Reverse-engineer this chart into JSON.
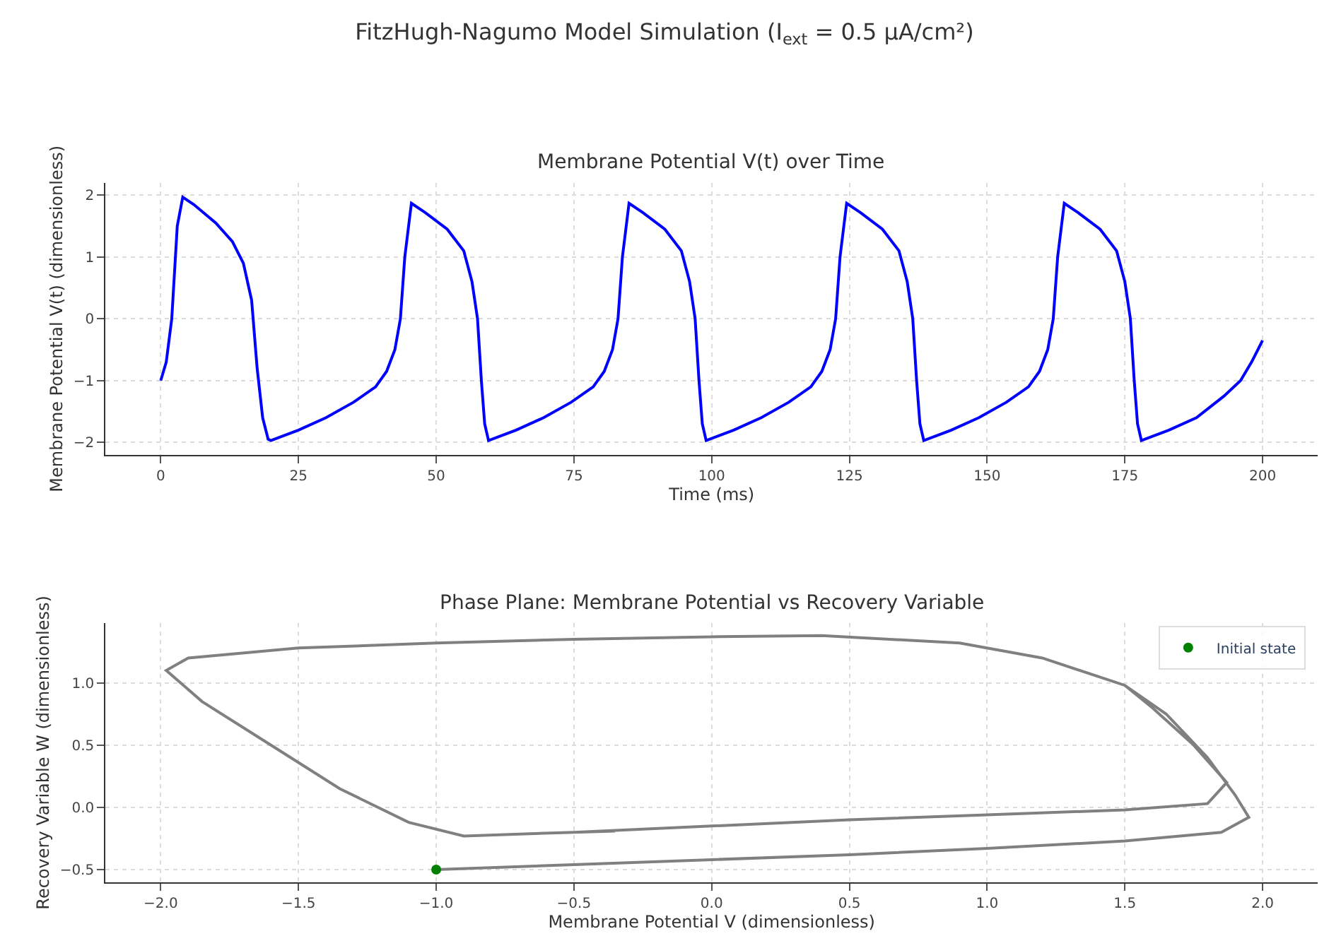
{
  "chart_data": [
    {
      "type": "line",
      "title": "FitzHugh-Nagumo Model Simulation (I$_{ext}$ = 0.5 µA/cm²)",
      "subtitle": "Membrane Potential V(t) over Time",
      "xlabel": "Time (ms)",
      "ylabel": "Membrane Potential V(t) (dimensionless)",
      "xlim": [
        -10,
        210
      ],
      "xticks": [
        0,
        25,
        50,
        75,
        100,
        125,
        150,
        175,
        200
      ],
      "ylim": [
        -2.2,
        2.2
      ],
      "yticks": [
        {
          "value": -2,
          "label": "−2"
        },
        {
          "value": -1,
          "label": "−1"
        },
        0,
        1,
        2
      ],
      "grid": true,
      "legend": false,
      "marker": "none",
      "line_style": "solid",
      "x": [
        0,
        1,
        2,
        3,
        4,
        6,
        10,
        13,
        15,
        16.5,
        17.5,
        18.5,
        19.5,
        20,
        25,
        30,
        35,
        39,
        41,
        42.5,
        43.5,
        44.3,
        45.5,
        48,
        52,
        55,
        56.5,
        57.5,
        58.2,
        58.8,
        59.5,
        64.5,
        69.5,
        74.5,
        78.5,
        80.5,
        82,
        83,
        83.8,
        85,
        87.5,
        91.5,
        94.5,
        96,
        97,
        97.7,
        98.3,
        99,
        104,
        109,
        114,
        118,
        120,
        121.5,
        122.5,
        123.3,
        124.5,
        127,
        131,
        134,
        135.5,
        136.5,
        137.2,
        137.8,
        138.5,
        143.5,
        148.5,
        153.5,
        157.5,
        159.5,
        161,
        162,
        162.8,
        164,
        166.5,
        170.5,
        173.5,
        175,
        176,
        176.7,
        177.3,
        178,
        183,
        188,
        193,
        196,
        198,
        200
      ],
      "series": [
        {
          "color": "#0000ff",
          "values": [
            -1,
            -0.7,
            0,
            1.5,
            1.97,
            1.85,
            1.55,
            1.25,
            0.9,
            0.3,
            -0.8,
            -1.6,
            -1.95,
            -1.97,
            -1.8,
            -1.6,
            -1.35,
            -1.1,
            -0.85,
            -0.5,
            0,
            1.0,
            1.87,
            1.72,
            1.45,
            1.1,
            0.6,
            0,
            -1,
            -1.7,
            -1.97,
            -1.8,
            -1.6,
            -1.35,
            -1.1,
            -0.85,
            -0.5,
            0,
            1.0,
            1.87,
            1.72,
            1.45,
            1.1,
            0.6,
            0,
            -1,
            -1.7,
            -1.97,
            -1.8,
            -1.6,
            -1.35,
            -1.1,
            -0.85,
            -0.5,
            0,
            1.0,
            1.87,
            1.72,
            1.45,
            1.1,
            0.6,
            0,
            -1,
            -1.7,
            -1.97,
            -1.8,
            -1.6,
            -1.35,
            -1.1,
            -0.85,
            -0.5,
            0,
            1.0,
            1.87,
            1.72,
            1.45,
            1.1,
            0.6,
            0,
            -1,
            -1.7,
            -1.97,
            -1.8,
            -1.6,
            -1.25,
            -1.0,
            -0.7,
            -0.35
          ]
        }
      ]
    },
    {
      "type": "line",
      "subtitle": "Phase Plane: Membrane Potential vs Recovery Variable",
      "xlabel": "Membrane Potential V (dimensionless)",
      "ylabel": "Recovery Variable W (dimensionless)",
      "xlim": [
        -2.2,
        2.2
      ],
      "xticks": [
        {
          "value": -2,
          "label": "−2.0"
        },
        {
          "value": -1.5,
          "label": "−1.5"
        },
        {
          "value": -1,
          "label": "−1.0"
        },
        {
          "value": -0.5,
          "label": "−0.5"
        },
        {
          "value": 0,
          "label": "0.0"
        },
        0.5,
        {
          "value": 1,
          "label": "1.0"
        },
        1.5,
        {
          "value": 2,
          "label": "2.0"
        }
      ],
      "ylim": [
        -0.6,
        1.48
      ],
      "yticks": [
        {
          "value": -0.5,
          "label": "−0.5"
        },
        {
          "value": 0,
          "label": "0.0"
        },
        0.5,
        {
          "value": 1,
          "label": "1.0"
        }
      ],
      "grid": true,
      "legend": "top right",
      "line_style": "solid",
      "series": [
        {
          "color": "#808080",
          "marker": "none",
          "x": [
            -1,
            -0.5,
            0,
            0.5,
            1,
            1.5,
            1.85,
            1.95,
            1.9,
            1.8,
            1.65,
            1.5,
            1.2,
            0.9,
            0.4,
            0,
            -0.5,
            -1,
            -1.5,
            -1.9,
            -1.98,
            -1.85,
            -1.6,
            -1.35,
            -1.1,
            -0.9,
            -0.5,
            0,
            0.5,
            1,
            1.5,
            1.8,
            1.87,
            1.85,
            1.75,
            1.6,
            1.5,
            1.2,
            0.9,
            0.4,
            0,
            -0.5,
            -1,
            -1.5,
            -1.9,
            -1.98,
            -1.85,
            -1.6,
            -1.35,
            -1.1,
            -0.9,
            -0.5,
            -0.35
          ],
          "values": [
            -0.5,
            -0.46,
            -0.42,
            -0.38,
            -0.33,
            -0.27,
            -0.2,
            -0.08,
            0.1,
            0.4,
            0.75,
            0.98,
            1.2,
            1.32,
            1.38,
            1.37,
            1.35,
            1.32,
            1.28,
            1.2,
            1.1,
            0.85,
            0.5,
            0.15,
            -0.12,
            -0.23,
            -0.2,
            -0.15,
            -0.1,
            -0.06,
            -0.02,
            0.03,
            0.2,
            0.25,
            0.5,
            0.8,
            0.98,
            1.2,
            1.32,
            1.38,
            1.37,
            1.35,
            1.32,
            1.28,
            1.2,
            1.1,
            0.85,
            0.5,
            0.15,
            -0.12,
            -0.23,
            -0.2,
            -0.19
          ]
        },
        {
          "type": "scatter",
          "name": "Initial state",
          "color": "#008000",
          "marker": "circle",
          "x": [
            -1
          ],
          "values": [
            -0.5
          ]
        }
      ]
    }
  ]
}
